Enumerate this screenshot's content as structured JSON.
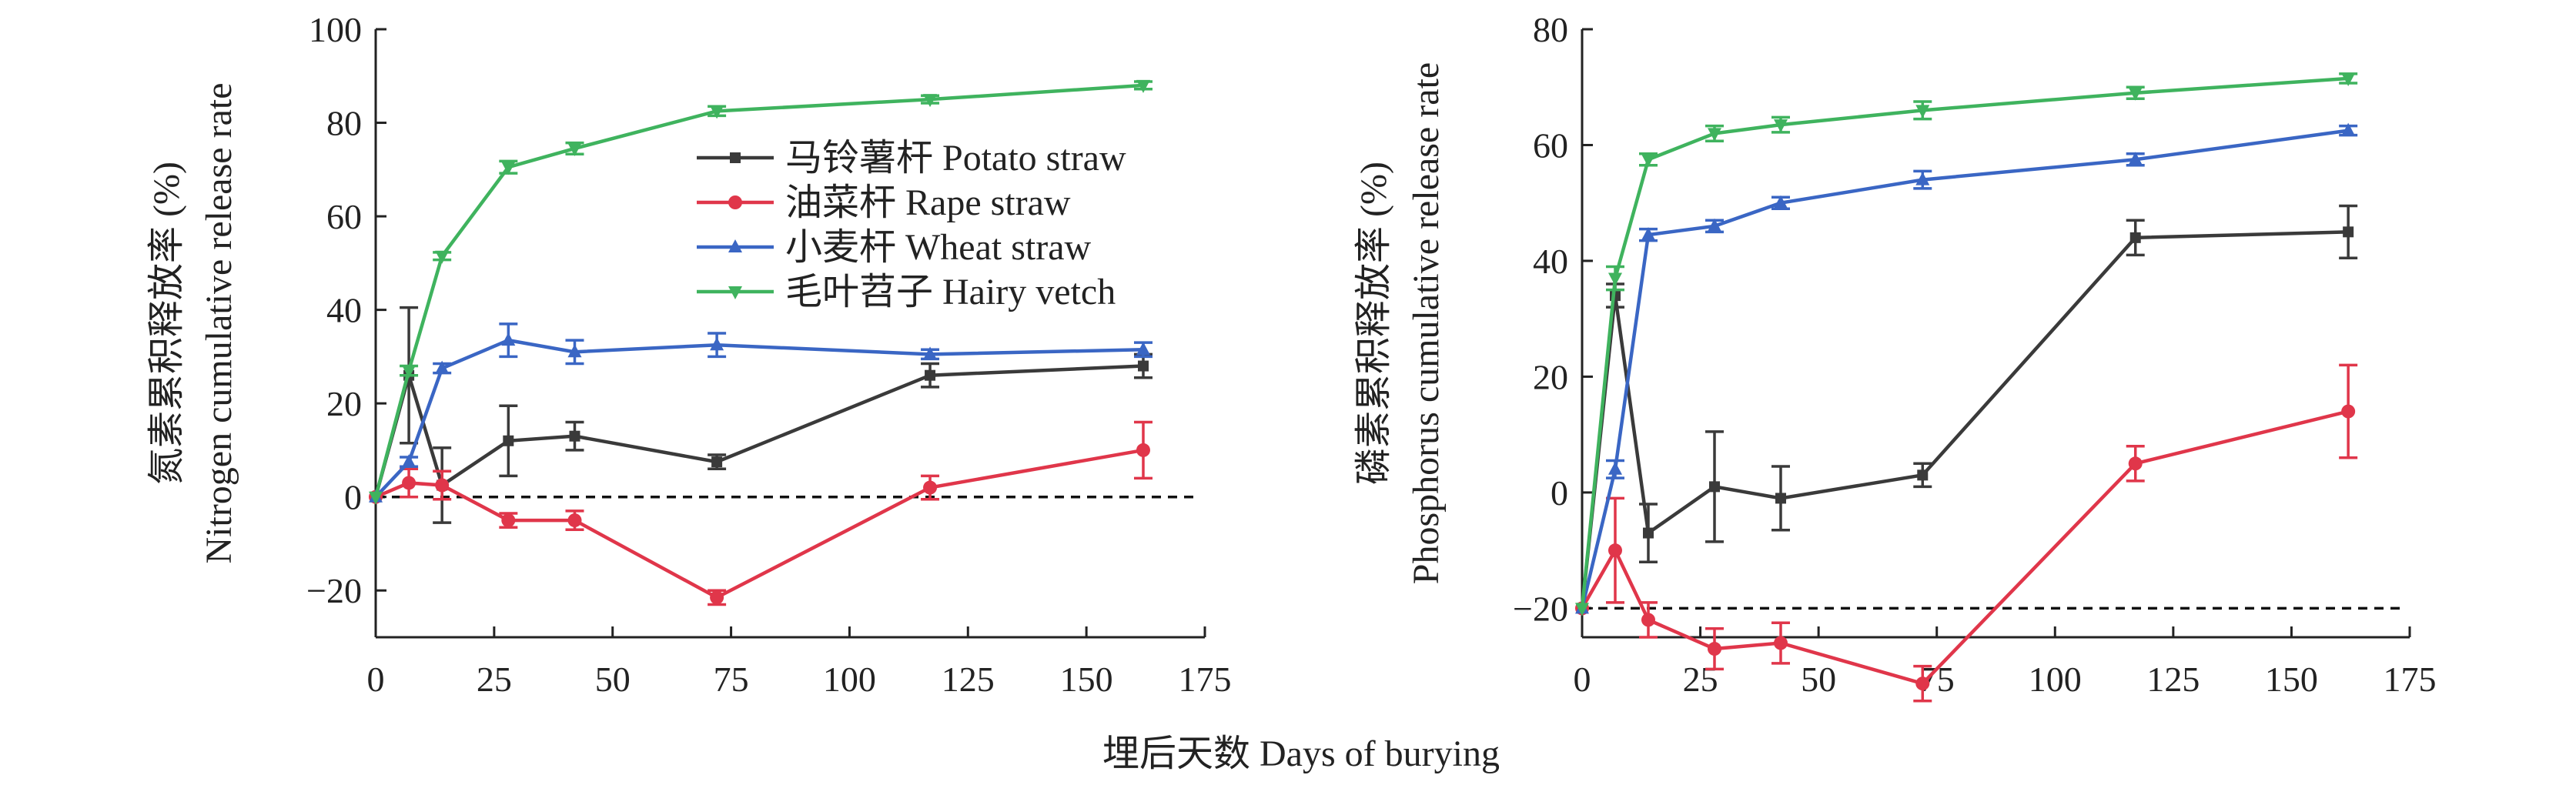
{
  "shared_xlabel": "埋后天数 Days of burying",
  "legend": [
    {
      "label": "马铃薯杆 Potato straw",
      "color": "#3a3a3a",
      "marker": "square"
    },
    {
      "label": "油菜杆 Rape straw",
      "color": "#e0364a",
      "marker": "circle"
    },
    {
      "label": "小麦杆 Wheat straw",
      "color": "#3a66c4",
      "marker": "triangle-up"
    },
    {
      "label": "毛叶苕子 Hairy vetch",
      "color": "#3fb35e",
      "marker": "triangle-down"
    }
  ],
  "chart_data": [
    {
      "type": "line",
      "title": "",
      "ylabel_cn": "氮素累积释放率 (%)",
      "ylabel_en": "Nitrogen cumulative release rate",
      "xlabel": "埋后天数 Days of burying",
      "xlim": [
        0,
        175
      ],
      "ylim": [
        -30,
        100
      ],
      "xticks": [
        0,
        25,
        50,
        75,
        100,
        125,
        150,
        175
      ],
      "yticks": [
        -20,
        0,
        20,
        40,
        60,
        80,
        100
      ],
      "ytick_labels": [
        "−20",
        "0",
        "20",
        "40",
        "60",
        "80",
        "100"
      ],
      "reference_line_y": 0,
      "x": [
        0,
        7,
        14,
        28,
        42,
        72,
        117,
        162
      ],
      "series": [
        {
          "name": "马铃薯杆 Potato straw",
          "values": [
            0,
            26,
            2.5,
            12,
            13,
            7.5,
            26,
            28
          ],
          "errors": [
            0,
            14.5,
            8,
            7.5,
            3,
            1.5,
            2.5,
            2.5
          ]
        },
        {
          "name": "油菜杆 Rape straw",
          "values": [
            0,
            3,
            2.5,
            -5,
            -5,
            -21.5,
            2,
            10
          ],
          "errors": [
            0,
            3,
            3,
            1.5,
            2,
            1.5,
            2.5,
            6
          ]
        },
        {
          "name": "小麦杆 Wheat straw",
          "values": [
            0,
            7.5,
            27.5,
            33.5,
            31,
            32.5,
            30.5,
            31.5
          ],
          "errors": [
            0,
            1,
            1,
            3.5,
            2.5,
            2.5,
            1,
            1.5
          ]
        },
        {
          "name": "毛叶苕子 Hairy vetch",
          "values": [
            0,
            27,
            51.5,
            70.5,
            74.5,
            82.5,
            85,
            88
          ],
          "errors": [
            0,
            1,
            0.8,
            1.3,
            1.2,
            1,
            0.8,
            0.8
          ]
        }
      ]
    },
    {
      "type": "line",
      "title": "",
      "ylabel_cn": "磷素累积释放率 (%)",
      "ylabel_en": "Phosphorus cumulative release rate",
      "xlabel": "埋后天数 Days of burying",
      "xlim": [
        0,
        175
      ],
      "ylim": [
        -25,
        80
      ],
      "xticks": [
        0,
        25,
        50,
        75,
        100,
        125,
        150,
        175
      ],
      "yticks": [
        -20,
        0,
        20,
        40,
        60,
        80
      ],
      "ytick_labels": [
        "−20",
        "0",
        "20",
        "40",
        "60",
        "80"
      ],
      "reference_line_y": -20,
      "x": [
        0,
        7,
        14,
        28,
        42,
        72,
        117,
        162
      ],
      "series": [
        {
          "name": "马铃薯杆 Potato straw",
          "values": [
            -20,
            34,
            -7,
            1,
            -1,
            3,
            44,
            45
          ],
          "errors": [
            0,
            2,
            5,
            9.5,
            5.5,
            2,
            3,
            4.5
          ]
        },
        {
          "name": "油菜杆 Rape straw",
          "values": [
            -20,
            -10,
            -22,
            -27,
            -26,
            -33,
            5,
            14
          ],
          "errors": [
            0,
            9,
            3,
            3.5,
            3.5,
            3,
            3,
            8
          ]
        },
        {
          "name": "小麦杆 Wheat straw",
          "values": [
            -20,
            4,
            44.5,
            46,
            50,
            54,
            57.5,
            62.5
          ],
          "errors": [
            0,
            1.5,
            1,
            1,
            1,
            1.5,
            1,
            0.8
          ]
        },
        {
          "name": "毛叶苕子 Hairy vetch",
          "values": [
            -20,
            37,
            57.5,
            62,
            63.5,
            66,
            69,
            71.5
          ],
          "errors": [
            0,
            2,
            1,
            1.3,
            1.3,
            1.5,
            1,
            0.8
          ]
        }
      ]
    }
  ]
}
